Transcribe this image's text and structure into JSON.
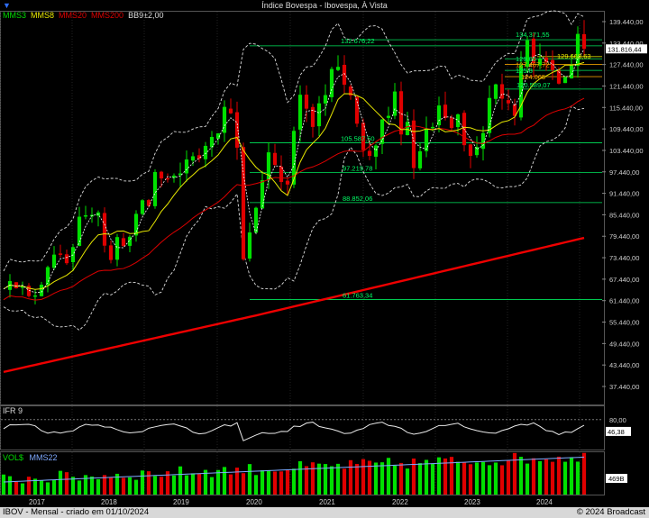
{
  "window": {
    "title": "Índice Bovespa - Ibovespa, À Vista",
    "corner_icon": "blue-dropdown-arrow-icon"
  },
  "legend": [
    {
      "label": "MMS3",
      "color": "#00dd00"
    },
    {
      "label": "MMS8",
      "color": "#e8e800"
    },
    {
      "label": "MMS20",
      "color": "#e00000"
    },
    {
      "label": "MMS200",
      "color": "#e00000"
    },
    {
      "label": "BB9±2,00",
      "color": "#dddddd"
    }
  ],
  "price_axis": {
    "labels": [
      "139.440,00",
      "133.440,00",
      "127.440,00",
      "121.440,00",
      "115.440,00",
      "109.440,00",
      "103.440,00",
      "97.440,00",
      "91.440,00",
      "85.440,00",
      "79.440,00",
      "73.440,00",
      "67.440,00",
      "61.440,00",
      "55.440,00",
      "49.440,00",
      "43.440,00",
      "37.440,00"
    ],
    "last_price": "131.816,44"
  },
  "price_levels": [
    {
      "label": "134.371,55",
      "color": "#00ff66"
    },
    {
      "label": "132.676,22",
      "color": "#00ff66"
    },
    {
      "label": "129.668,63",
      "color": "#e8e800"
    },
    {
      "label": "129.06",
      "color": "#00ff66"
    },
    {
      "label": "127.467,72",
      "color": "#ffaa00"
    },
    {
      "label": "125.8",
      "color": "#00ff66"
    },
    {
      "label": "124.065",
      "color": "#ffaa00"
    },
    {
      "label": "120.589,07",
      "color": "#00ff66"
    },
    {
      "label": "105.587,50",
      "color": "#00ff66"
    },
    {
      "label": "97.219,78",
      "color": "#00ff66"
    },
    {
      "label": "88.852,06",
      "color": "#00ff66"
    },
    {
      "label": "61.763,34",
      "color": "#00ff66"
    }
  ],
  "ifr": {
    "title": "IFR 9",
    "level_label": "80,00",
    "current": "46,38"
  },
  "volume": {
    "title": "VOL$",
    "ma_label": "MMS22",
    "current": "469B",
    "title_color": "#00dd00",
    "ma_color": "#7faaff"
  },
  "x_axis": {
    "years": [
      "2017",
      "2018",
      "2019",
      "2020",
      "2021",
      "2022",
      "2023",
      "2024"
    ]
  },
  "footer": {
    "left": "IBOV - Mensal - criado em 01/10/2024",
    "right": "© 2024 Broadcast"
  }
}
